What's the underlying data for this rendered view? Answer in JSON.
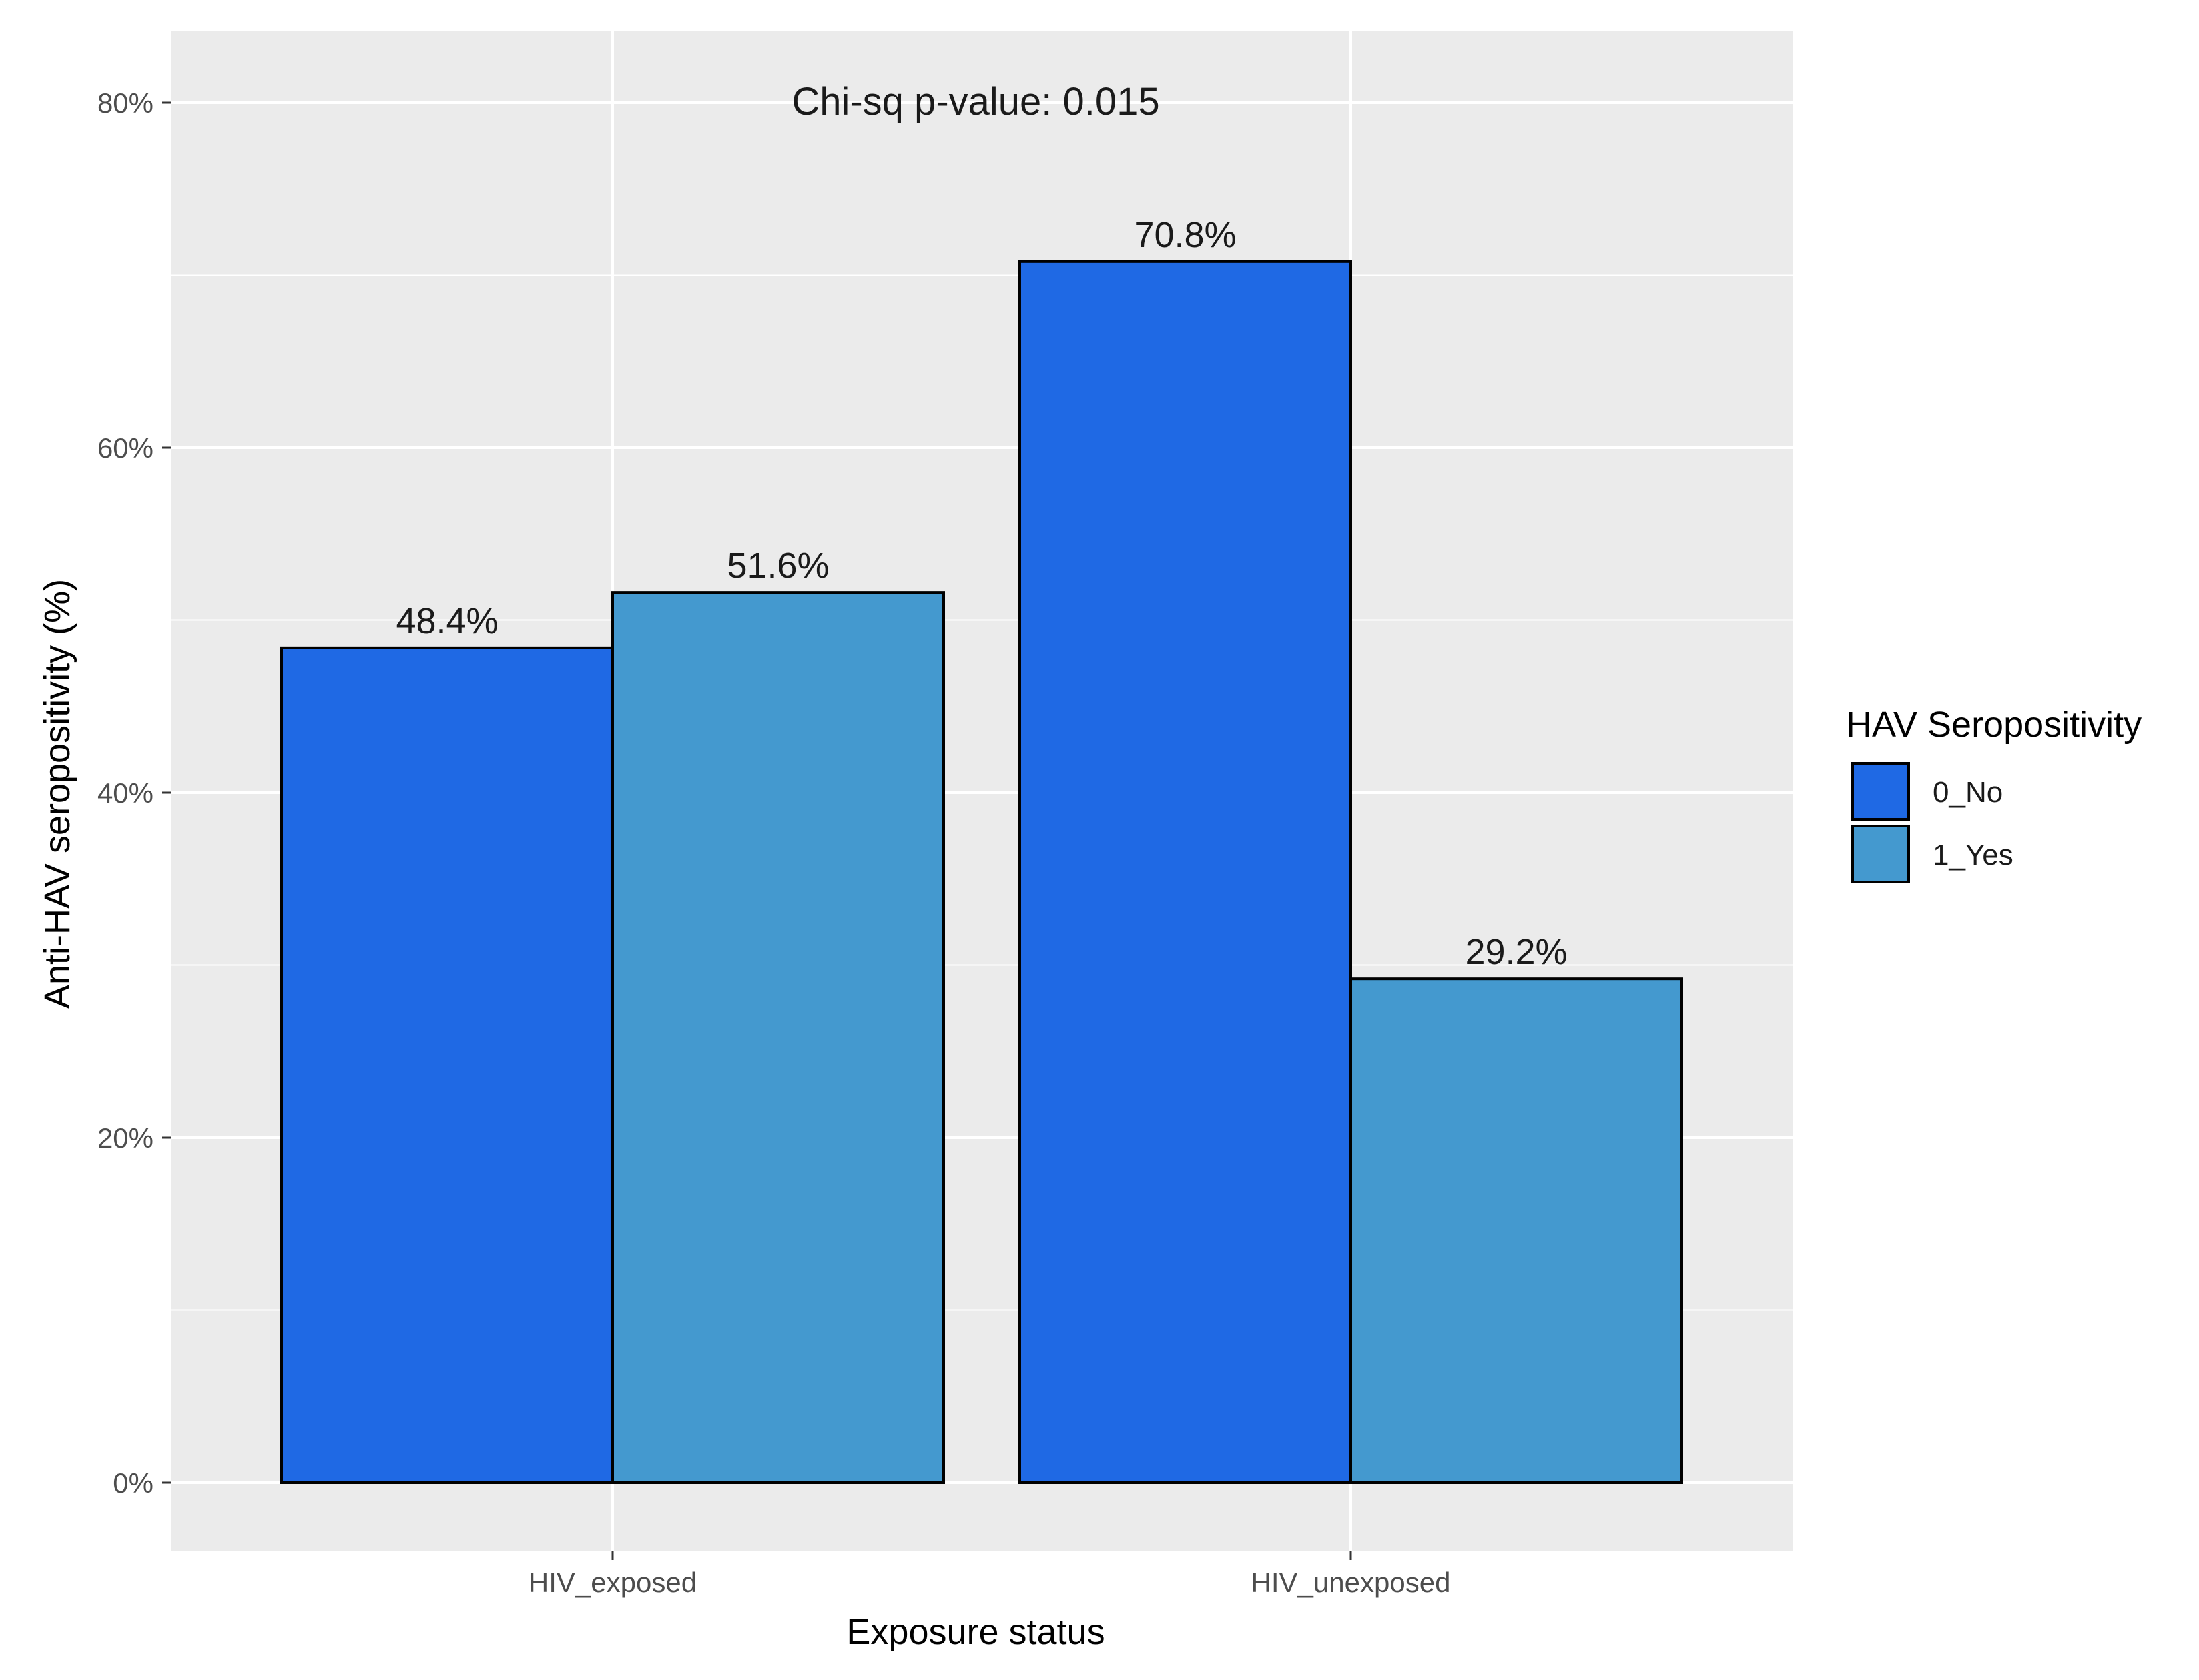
{
  "chart_data": {
    "type": "bar",
    "annotation": "Chi-sq p-value: 0.015",
    "xlabel": "Exposure status",
    "ylabel": "Anti-HAV seropositivity (%)",
    "categories": [
      "HIV_exposed",
      "HIV_unexposed"
    ],
    "series": [
      {
        "name": "0_No",
        "color": "#1f69e4",
        "values": [
          48.4,
          70.8
        ],
        "labels": [
          "48.4%",
          "70.8%"
        ]
      },
      {
        "name": "1_Yes",
        "color": "#4499cf",
        "values": [
          51.6,
          29.2
        ],
        "labels": [
          "51.6%",
          "29.2%"
        ]
      }
    ],
    "ylim": [
      -4,
      84
    ],
    "yticks": [
      0,
      20,
      40,
      60,
      80
    ],
    "ytick_labels": [
      "0%",
      "20%",
      "40%",
      "60%",
      "80%"
    ],
    "legend": {
      "title": "HAV Seropositivity",
      "position": "right"
    },
    "grid": true,
    "panel_background": "#ebebeb",
    "grid_color": "#ffffff"
  }
}
